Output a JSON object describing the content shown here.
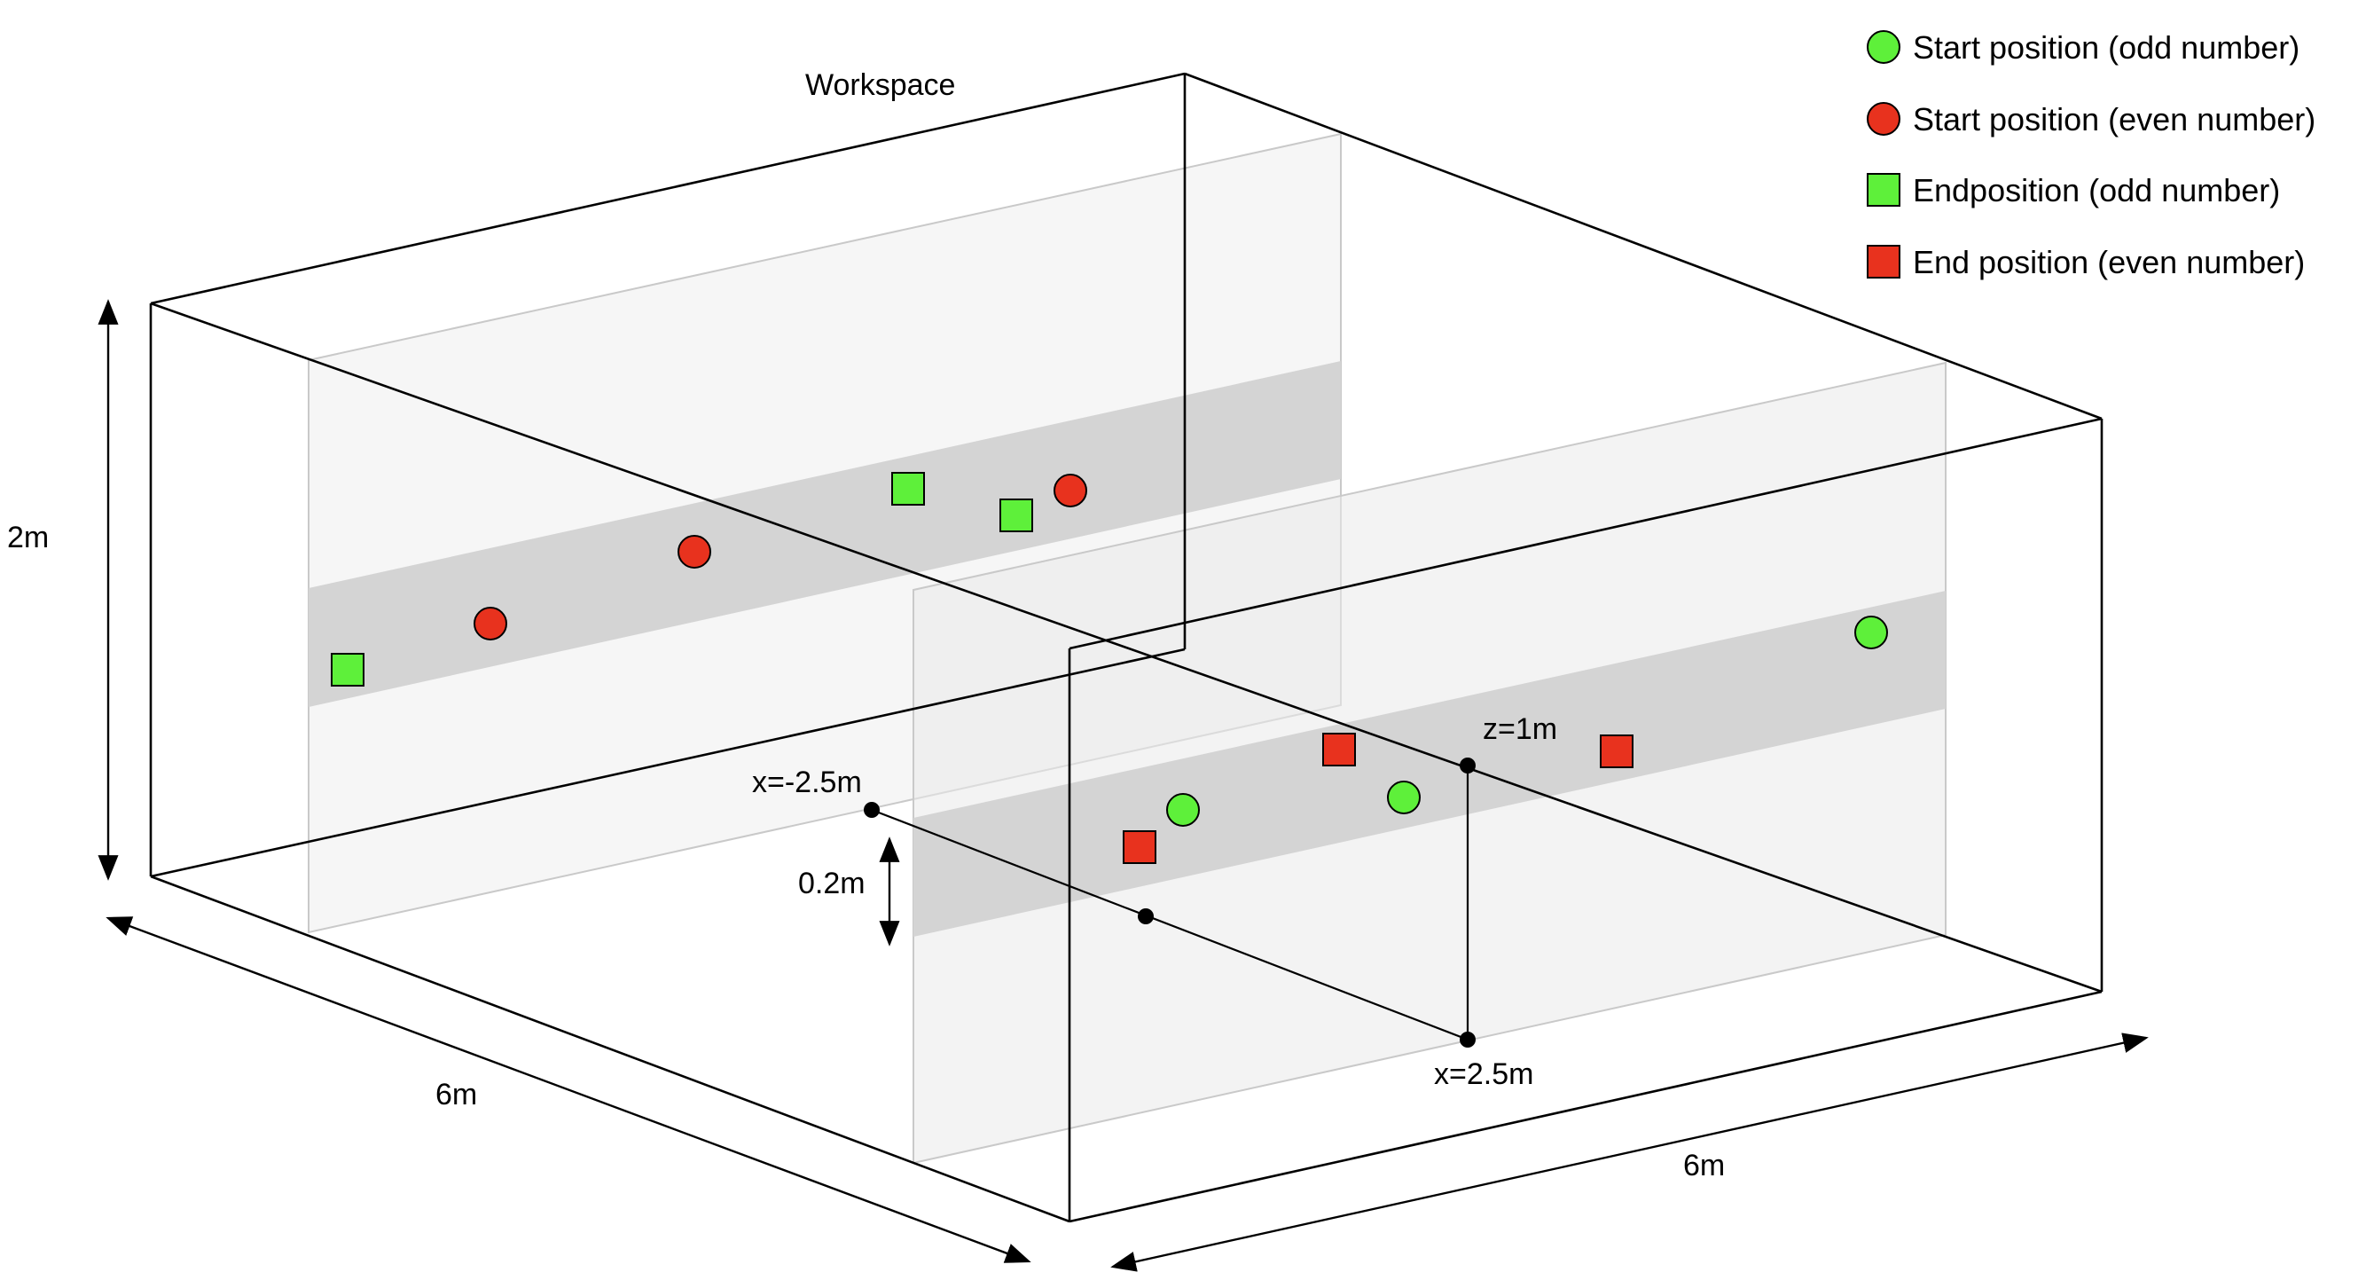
{
  "title": "Workspace",
  "dimensions": {
    "height": "2m",
    "depth": "6m",
    "width": "6m",
    "band": "0.2m"
  },
  "points": {
    "x_neg": "x=-2.5m",
    "x_pos": "x=2.5m",
    "z": "z=1m"
  },
  "legend": [
    {
      "shape": "circle",
      "color": "#5ef03a",
      "label": "Start position (odd number)"
    },
    {
      "shape": "circle",
      "color": "#e8321e",
      "label": "Start position (even number)"
    },
    {
      "shape": "square",
      "color": "#5ef03a",
      "label": "Endposition (odd number)"
    },
    {
      "shape": "square",
      "color": "#e8321e",
      "label": "End position (even number)"
    }
  ],
  "colors": {
    "odd": "#5ef03a",
    "even": "#e8321e",
    "plane": "#ededed",
    "band": "#d6d6d6"
  }
}
